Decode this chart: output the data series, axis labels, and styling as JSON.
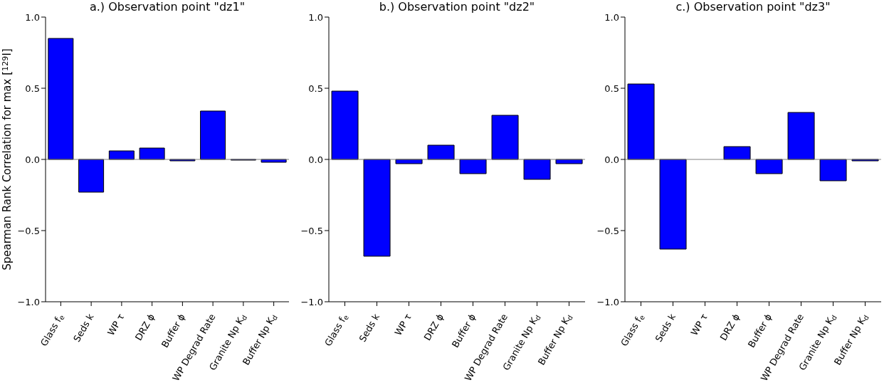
{
  "chart_data": [
    {
      "type": "bar",
      "title": "a.) Observation point \"dz1\"",
      "ylabel": "Spearman Rank Correlation for max [$^{129}$I]",
      "categories": [
        "Glass f$_{e}$",
        "Seds k",
        "WP τ",
        "DRZ ϕ",
        "Buffer ϕ",
        "WP Degrad Rate",
        "Granite Np K$_{d}$",
        "Buffer Np K$_{d}$"
      ],
      "values": [
        0.85,
        -0.23,
        0.06,
        0.08,
        -0.01,
        0.34,
        -0.005,
        -0.02
      ],
      "color": "#0000ff",
      "ylim": [
        -1,
        1
      ],
      "yticks": [
        {
          "value": -1,
          "label": "−1.0"
        },
        {
          "value": -0.5,
          "label": "−0.5"
        },
        {
          "value": 0,
          "label": "0.0"
        },
        {
          "value": 0.5,
          "label": "0.5"
        },
        {
          "value": 1,
          "label": "1.0"
        }
      ],
      "ref_lines": [
        {
          "axis": "y",
          "value": 0,
          "color": "#808080"
        }
      ]
    },
    {
      "type": "bar",
      "title": "b.) Observation point \"dz2\"",
      "categories": [
        "Glass f$_{e}$",
        "Seds k",
        "WP τ",
        "DRZ ϕ",
        "Buffer ϕ",
        "WP Degrad Rate",
        "Granite Np K$_{d}$",
        "Buffer Np K$_{d}$"
      ],
      "values": [
        0.48,
        -0.68,
        -0.03,
        0.1,
        -0.1,
        0.31,
        -0.14,
        -0.03
      ],
      "color": "#0000ff",
      "ylim": [
        -1,
        1
      ],
      "yticks": [
        {
          "value": -1,
          "label": "−1.0"
        },
        {
          "value": -0.5,
          "label": "−0.5"
        },
        {
          "value": 0,
          "label": "0.0"
        },
        {
          "value": 0.5,
          "label": "0.5"
        },
        {
          "value": 1,
          "label": "1.0"
        }
      ],
      "ref_lines": [
        {
          "axis": "y",
          "value": 0,
          "color": "#808080"
        }
      ]
    },
    {
      "type": "bar",
      "title": "c.) Observation point \"dz3\"",
      "categories": [
        "Glass f$_{e}$",
        "Seds k",
        "WP τ",
        "DRZ ϕ",
        "Buffer ϕ",
        "WP Degrad Rate",
        "Granite Np K$_{d}$",
        "Buffer Np K$_{d}$"
      ],
      "values": [
        0.53,
        -0.63,
        0,
        0.09,
        -0.1,
        0.33,
        -0.15,
        -0.01
      ],
      "color": "#0000ff",
      "ylim": [
        -1,
        1
      ],
      "yticks": [
        {
          "value": -1,
          "label": "−1.0"
        },
        {
          "value": -0.5,
          "label": "−0.5"
        },
        {
          "value": 0,
          "label": "0.0"
        },
        {
          "value": 0.5,
          "label": "0.5"
        },
        {
          "value": 1,
          "label": "1.0"
        }
      ],
      "ref_lines": [
        {
          "axis": "y",
          "value": 0,
          "color": "#808080"
        }
      ]
    }
  ]
}
